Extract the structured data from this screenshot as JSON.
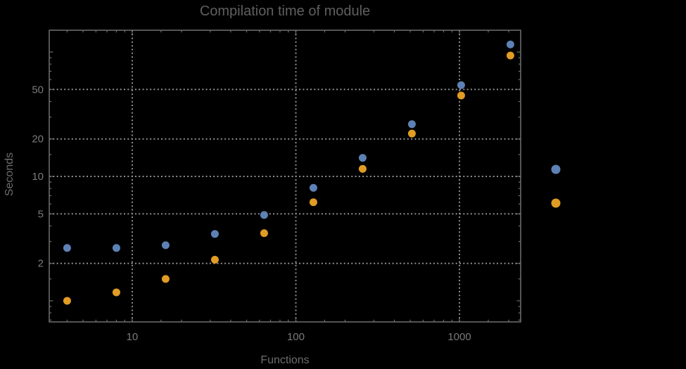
{
  "window": {
    "background_color": "#000000"
  },
  "chart_data": {
    "type": "scatter",
    "title": "Compilation time of module",
    "xlabel": "Functions",
    "ylabel": "Seconds",
    "x_scale": "log",
    "y_scale": "log",
    "xlim": [
      3.11,
      2366
    ],
    "ylim": [
      0.677,
      149.7
    ],
    "grid": {
      "style": "dotted",
      "x_values": [
        10,
        100,
        1000
      ],
      "y_values": [
        2,
        5,
        10,
        20,
        50
      ]
    },
    "x_ticks": {
      "labeled": [
        {
          "value": 10,
          "label": "10"
        },
        {
          "value": 100,
          "label": "100"
        },
        {
          "value": 1000,
          "label": "1000"
        }
      ],
      "unlabeled_major": [],
      "minor_mantissas": [
        1.5,
        2,
        3,
        4,
        5,
        6,
        7,
        8,
        9
      ]
    },
    "y_ticks": {
      "labeled": [
        {
          "value": 2,
          "label": "2"
        },
        {
          "value": 5,
          "label": "5"
        },
        {
          "value": 10,
          "label": "10"
        },
        {
          "value": 20,
          "label": "20"
        },
        {
          "value": 50,
          "label": "50"
        }
      ],
      "unlabeled_major": [
        1,
        100
      ],
      "minor_mantissas": [
        1.5,
        3,
        4,
        6,
        7,
        8,
        9
      ]
    },
    "x": [
      4,
      8,
      16,
      32,
      64,
      128,
      256,
      512,
      1024,
      2048
    ],
    "series": [
      {
        "name": "blue-series",
        "color": "#5E81B5",
        "values": [
          2.66,
          2.66,
          2.8,
          3.45,
          4.9,
          8.1,
          14.1,
          26.3,
          54.2,
          115
        ]
      },
      {
        "name": "orange-series",
        "color": "#E19C24",
        "values": [
          1.0,
          1.17,
          1.5,
          2.14,
          3.5,
          6.2,
          11.5,
          22.1,
          44.7,
          93.7
        ]
      }
    ],
    "legend": {
      "position": "right-outside",
      "labels_visible": false,
      "entries": [
        {
          "label": "",
          "color": "#5E81B5"
        },
        {
          "label": "",
          "color": "#E19C24"
        }
      ]
    },
    "style_colors": {
      "frame": "#6a6a6a",
      "grid": "#8f8f8f",
      "tick_label": "#7a7a7a",
      "title": "#5f5f5f",
      "axis_label": "#6d6d6d"
    }
  }
}
